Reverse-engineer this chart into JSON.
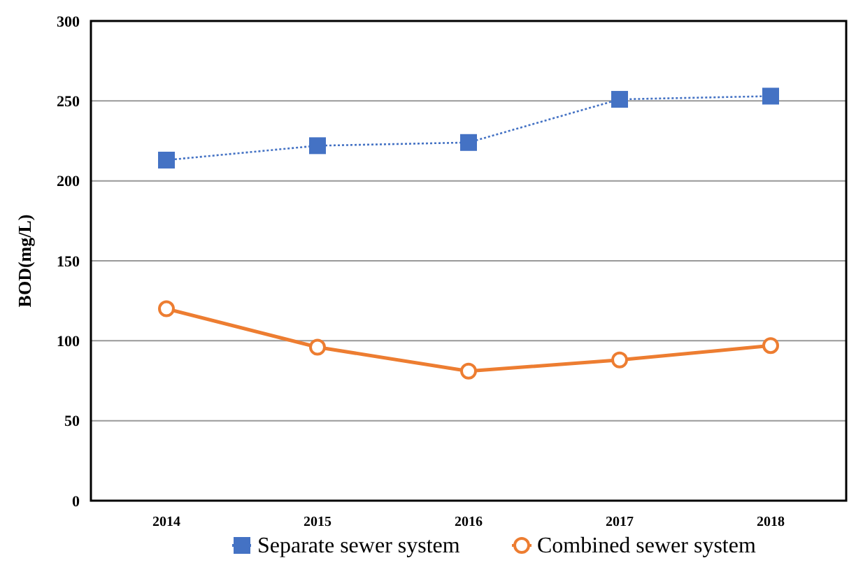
{
  "chart_data": {
    "type": "line",
    "ylabel": "BOD(mg/L)",
    "categories": [
      "2014",
      "2015",
      "2016",
      "2017",
      "2018"
    ],
    "series": [
      {
        "name": "Separate sewer system",
        "color": "#4472c4",
        "values": [
          213,
          222,
          224,
          251,
          253
        ],
        "marker": "square",
        "line_style": "dotted"
      },
      {
        "name": "Combined sewer system",
        "color": "#ed7d31",
        "values": [
          120,
          96,
          81,
          88,
          97
        ],
        "marker": "circle",
        "line_style": "solid"
      }
    ],
    "ylim": [
      0,
      300
    ],
    "yticks": [
      0,
      50,
      100,
      150,
      200,
      250,
      300
    ],
    "grid": "y",
    "legend": "bottom"
  }
}
